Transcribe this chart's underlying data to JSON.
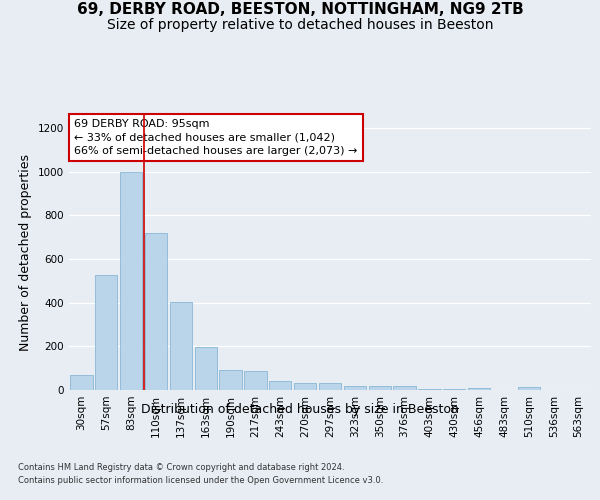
{
  "title_line1": "69, DERBY ROAD, BEESTON, NOTTINGHAM, NG9 2TB",
  "title_line2": "Size of property relative to detached houses in Beeston",
  "xlabel": "Distribution of detached houses by size in Beeston",
  "ylabel": "Number of detached properties",
  "categories": [
    "30sqm",
    "57sqm",
    "83sqm",
    "110sqm",
    "137sqm",
    "163sqm",
    "190sqm",
    "217sqm",
    "243sqm",
    "270sqm",
    "297sqm",
    "323sqm",
    "350sqm",
    "376sqm",
    "403sqm",
    "430sqm",
    "456sqm",
    "483sqm",
    "510sqm",
    "536sqm",
    "563sqm"
  ],
  "values": [
    70,
    525,
    1000,
    720,
    405,
    197,
    90,
    87,
    42,
    32,
    32,
    18,
    18,
    20,
    3,
    3,
    10,
    0,
    12,
    0,
    0
  ],
  "bar_color": "#bad4ea",
  "bar_edge_color": "#7aafd0",
  "vline_x_index": 2,
  "vline_color": "#cc0000",
  "annotation_line1": "69 DERBY ROAD: 95sqm",
  "annotation_line2": "← 33% of detached houses are smaller (1,042)",
  "annotation_line3": "66% of semi-detached houses are larger (2,073) →",
  "annotation_box_color": "#cc0000",
  "annotation_box_bg": "#ffffff",
  "ylim": [
    0,
    1260
  ],
  "yticks": [
    0,
    200,
    400,
    600,
    800,
    1000,
    1200
  ],
  "bg_color": "#e8edf4",
  "plot_bg_color": "#e8edf4",
  "footer_line1": "Contains HM Land Registry data © Crown copyright and database right 2024.",
  "footer_line2": "Contains public sector information licensed under the Open Government Licence v3.0.",
  "title_fontsize": 11,
  "subtitle_fontsize": 10,
  "ylabel_fontsize": 9,
  "xlabel_fontsize": 9,
  "tick_fontsize": 7.5,
  "annotation_fontsize": 8,
  "footer_fontsize": 6
}
